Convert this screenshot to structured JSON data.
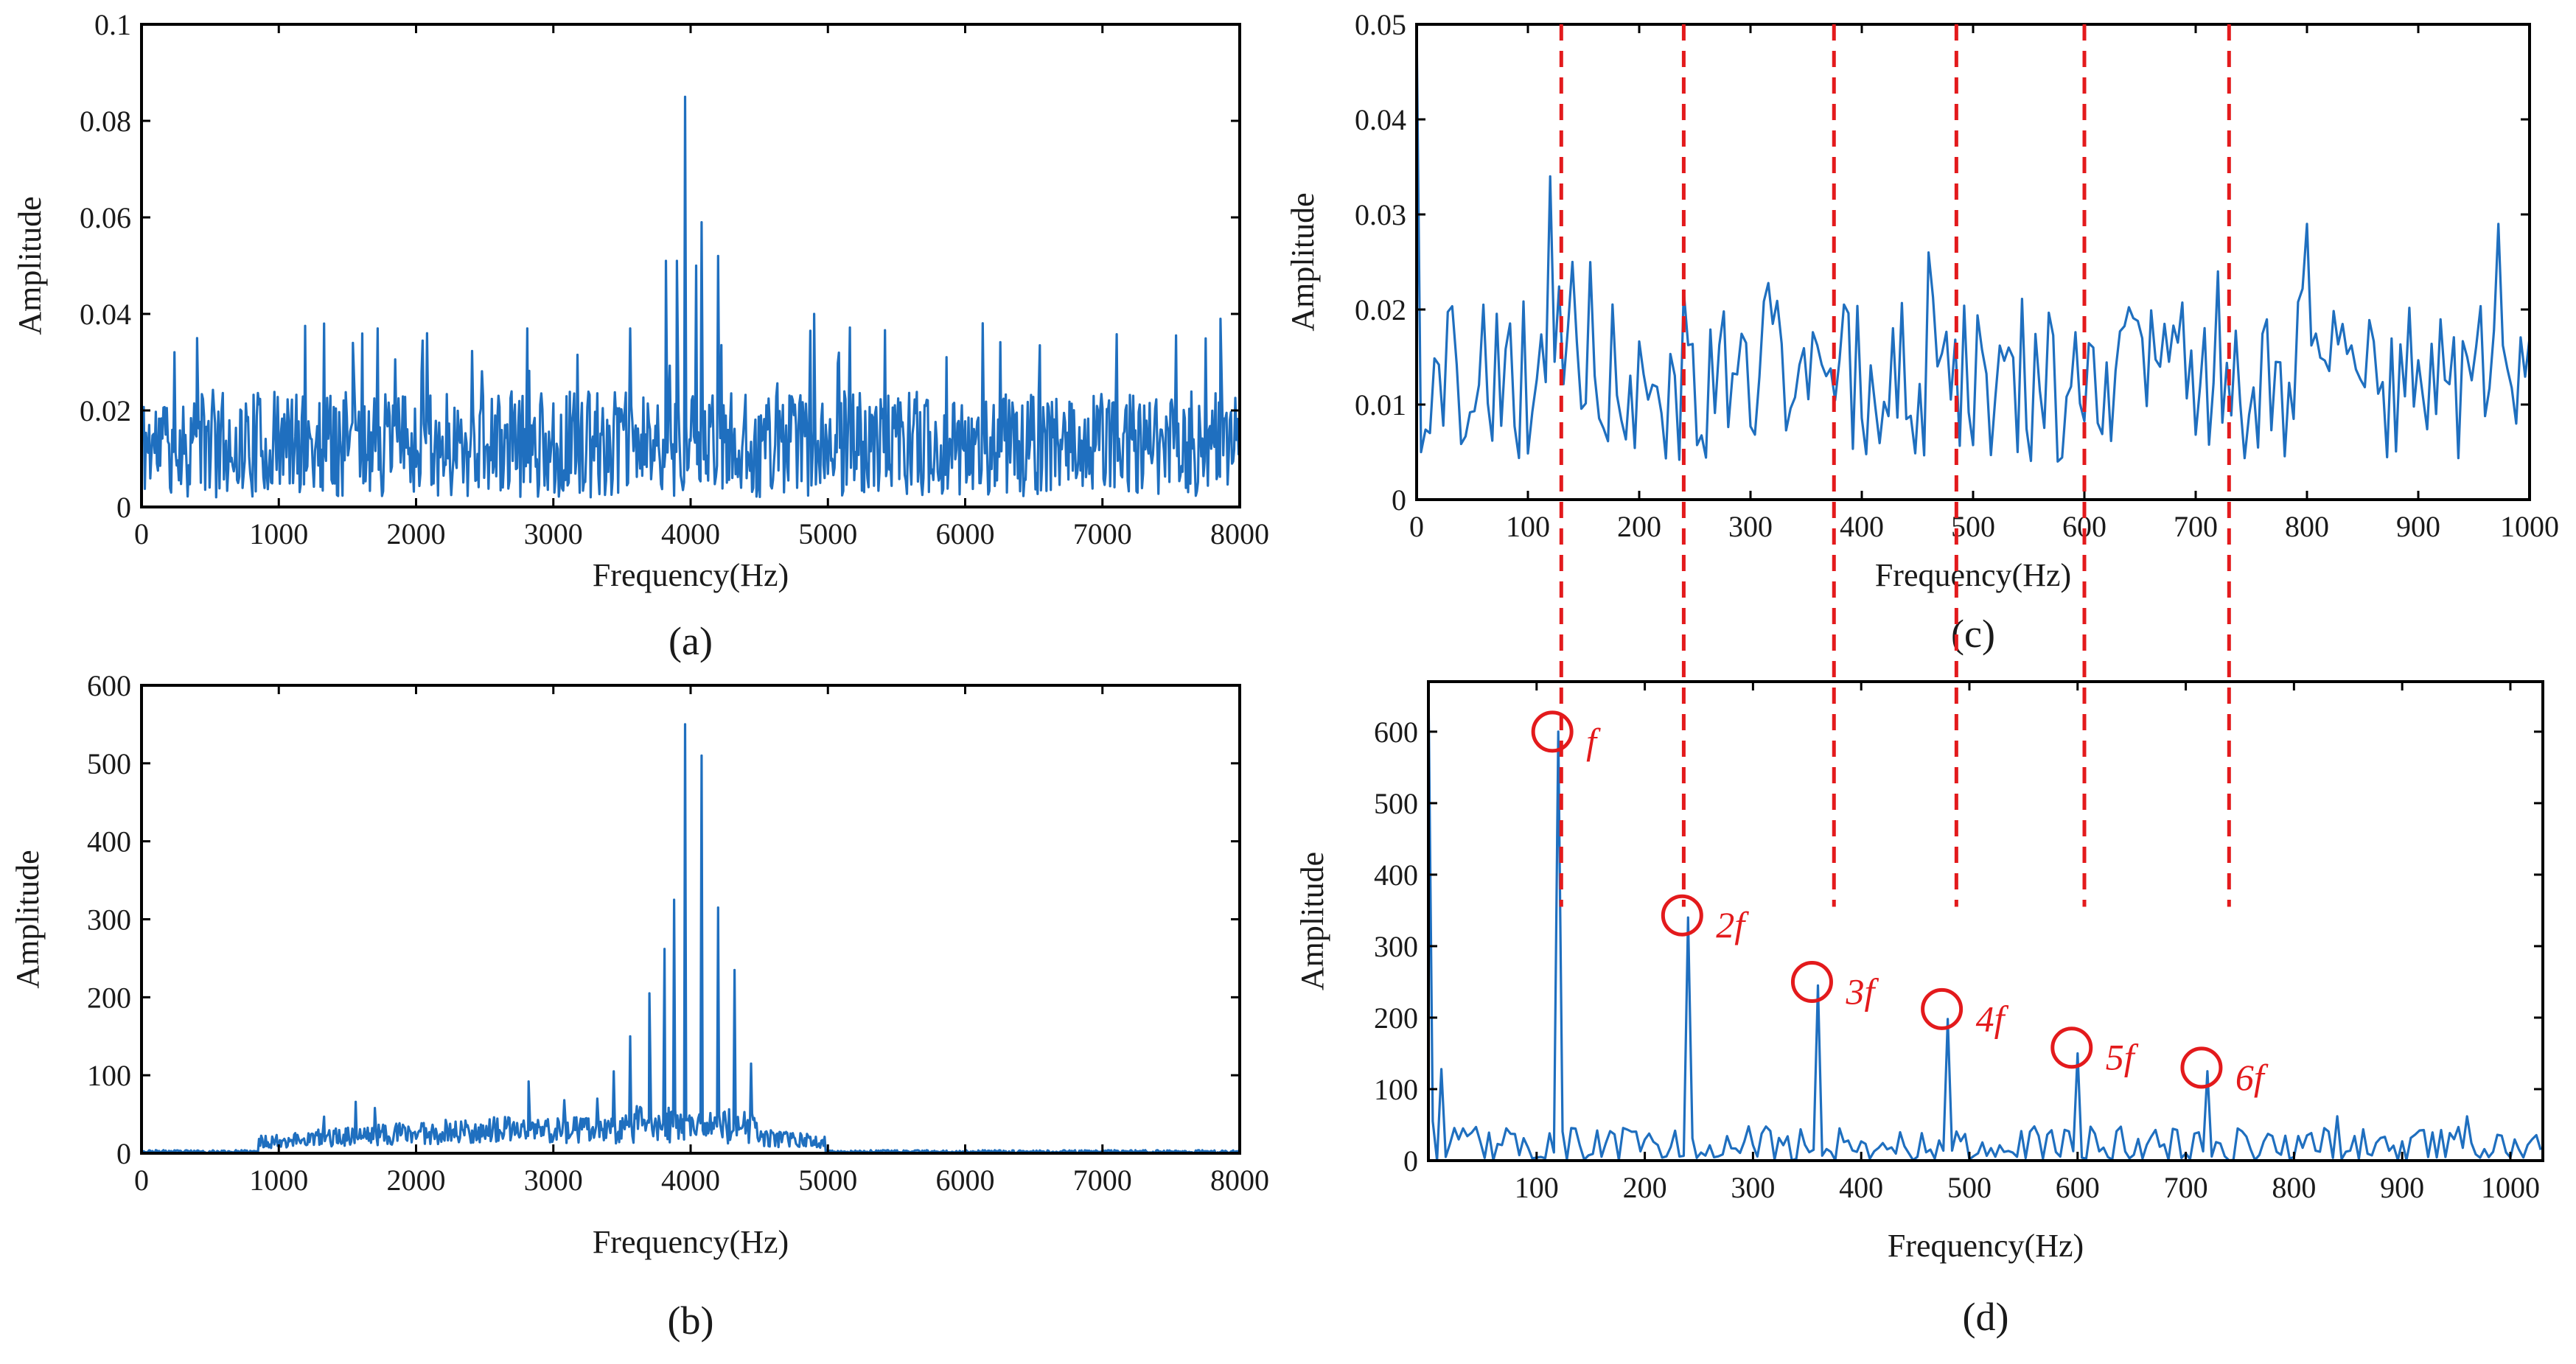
{
  "series_color": "#1f6fbf",
  "annotation_color": "#e31a1c",
  "chart_data": [
    {
      "id": "a",
      "type": "line",
      "panel_label": "(a)",
      "xlabel": "Frequency(Hz)",
      "ylabel": "Amplitude",
      "xlim": [
        0,
        8000
      ],
      "ylim": [
        0,
        0.1
      ],
      "xticks": [
        0,
        1000,
        2000,
        3000,
        4000,
        5000,
        6000,
        7000,
        8000
      ],
      "yticks": [
        0,
        0.02,
        0.04,
        0.06,
        0.08,
        0.1
      ],
      "ytick_labels": [
        "0",
        "0.02",
        "0.04",
        "0.06",
        "0.08",
        "0.1"
      ],
      "noise": {
        "x_step": 8,
        "base": 0.013,
        "spread": 0.011,
        "spike_probability": 0.05,
        "spike_max": 0.039,
        "seed": 11
      },
      "peaks": [
        {
          "x": 405,
          "y": 0.035
        },
        {
          "x": 1330,
          "y": 0.038
        },
        {
          "x": 1540,
          "y": 0.034
        },
        {
          "x": 1720,
          "y": 0.037
        },
        {
          "x": 2080,
          "y": 0.036
        },
        {
          "x": 2810,
          "y": 0.037
        },
        {
          "x": 3560,
          "y": 0.037
        },
        {
          "x": 3820,
          "y": 0.051
        },
        {
          "x": 3900,
          "y": 0.051
        },
        {
          "x": 3960,
          "y": 0.085
        },
        {
          "x": 4040,
          "y": 0.05
        },
        {
          "x": 4080,
          "y": 0.059
        },
        {
          "x": 4200,
          "y": 0.052
        },
        {
          "x": 4900,
          "y": 0.04
        },
        {
          "x": 7860,
          "y": 0.039
        }
      ]
    },
    {
      "id": "b",
      "type": "line",
      "panel_label": "(b)",
      "xlabel": "Frequency(Hz)",
      "ylabel": "Amplitude",
      "xlim": [
        0,
        8000
      ],
      "ylim": [
        0,
        600
      ],
      "xticks": [
        0,
        1000,
        2000,
        3000,
        4000,
        5000,
        6000,
        7000,
        8000
      ],
      "yticks": [
        0,
        100,
        200,
        300,
        400,
        500,
        600
      ],
      "ytick_labels": [
        "0",
        "100",
        "200",
        "300",
        "400",
        "500",
        "600"
      ],
      "noise": {
        "x_step": 8,
        "band_start": 850,
        "band_end": 4980,
        "base": 20,
        "spread": 30,
        "outside_max": 4,
        "seed": 23
      },
      "peaks": [
        {
          "x": 1330,
          "y": 47
        },
        {
          "x": 1560,
          "y": 66
        },
        {
          "x": 1700,
          "y": 58
        },
        {
          "x": 2820,
          "y": 92
        },
        {
          "x": 3080,
          "y": 68
        },
        {
          "x": 3320,
          "y": 70
        },
        {
          "x": 3440,
          "y": 105
        },
        {
          "x": 3560,
          "y": 150
        },
        {
          "x": 3700,
          "y": 205
        },
        {
          "x": 3810,
          "y": 262
        },
        {
          "x": 3880,
          "y": 325
        },
        {
          "x": 3960,
          "y": 550
        },
        {
          "x": 4080,
          "y": 510
        },
        {
          "x": 4200,
          "y": 315
        },
        {
          "x": 4320,
          "y": 235
        },
        {
          "x": 4440,
          "y": 115
        }
      ]
    },
    {
      "id": "c",
      "type": "line",
      "panel_label": "(c)",
      "xlabel": "Frequency(Hz)",
      "ylabel": "Amplitude",
      "xlim": [
        0,
        1000
      ],
      "ylim": [
        0,
        0.05
      ],
      "xticks": [
        0,
        100,
        200,
        300,
        400,
        500,
        600,
        700,
        800,
        900,
        1000
      ],
      "yticks": [
        0,
        0.01,
        0.02,
        0.03,
        0.04,
        0.05
      ],
      "ytick_labels": [
        "0",
        "0.01",
        "0.02",
        "0.03",
        "0.04",
        "0.05"
      ],
      "noise": {
        "x_step": 4,
        "base": 0.0125,
        "spread": 0.0085,
        "spike_probability": 0.12,
        "spike_max": 0.026,
        "seed": 37
      },
      "peaks": [
        {
          "x": 0,
          "y": 0.05
        },
        {
          "x": 4,
          "y": 0.005
        },
        {
          "x": 120,
          "y": 0.034
        },
        {
          "x": 140,
          "y": 0.025
        },
        {
          "x": 240,
          "y": 0.022
        },
        {
          "x": 460,
          "y": 0.026
        },
        {
          "x": 720,
          "y": 0.024
        },
        {
          "x": 800,
          "y": 0.029
        },
        {
          "x": 972,
          "y": 0.029
        },
        {
          "x": 1000,
          "y": 0.017
        }
      ]
    },
    {
      "id": "d",
      "type": "line",
      "panel_label": "(d)",
      "xlabel": "Frequency(Hz)",
      "ylabel": "Amplitude",
      "xlim": [
        0,
        1030
      ],
      "ylim": [
        0,
        670
      ],
      "xticks": [
        100,
        200,
        300,
        400,
        500,
        600,
        700,
        800,
        900,
        1000
      ],
      "yticks": [
        0,
        100,
        200,
        300,
        400,
        500,
        600
      ],
      "ytick_labels": [
        "0",
        "100",
        "200",
        "300",
        "400",
        "500",
        "600"
      ],
      "noise": {
        "x_step": 4,
        "base": 22,
        "spread": 26,
        "seed": 53
      },
      "peaks": [
        {
          "x": 0,
          "y": 670
        },
        {
          "x": 4,
          "y": 55
        },
        {
          "x": 12,
          "y": 128
        },
        {
          "x": 120,
          "y": 600
        },
        {
          "x": 240,
          "y": 340
        },
        {
          "x": 360,
          "y": 245
        },
        {
          "x": 480,
          "y": 198
        },
        {
          "x": 600,
          "y": 150
        },
        {
          "x": 720,
          "y": 125
        },
        {
          "x": 840,
          "y": 62
        },
        {
          "x": 960,
          "y": 62
        }
      ],
      "harmonics": [
        {
          "x": 120,
          "y": 600,
          "label": "f"
        },
        {
          "x": 240,
          "y": 343,
          "label": "2f"
        },
        {
          "x": 360,
          "y": 250,
          "label": "3f"
        },
        {
          "x": 480,
          "y": 212,
          "label": "4f"
        },
        {
          "x": 600,
          "y": 158,
          "label": "5f"
        },
        {
          "x": 720,
          "y": 130,
          "label": "6f"
        }
      ]
    }
  ],
  "guide_lines": {
    "from_panel": "c",
    "to_panel": "d",
    "x": [
      130,
      240,
      375,
      485,
      600,
      730
    ]
  }
}
